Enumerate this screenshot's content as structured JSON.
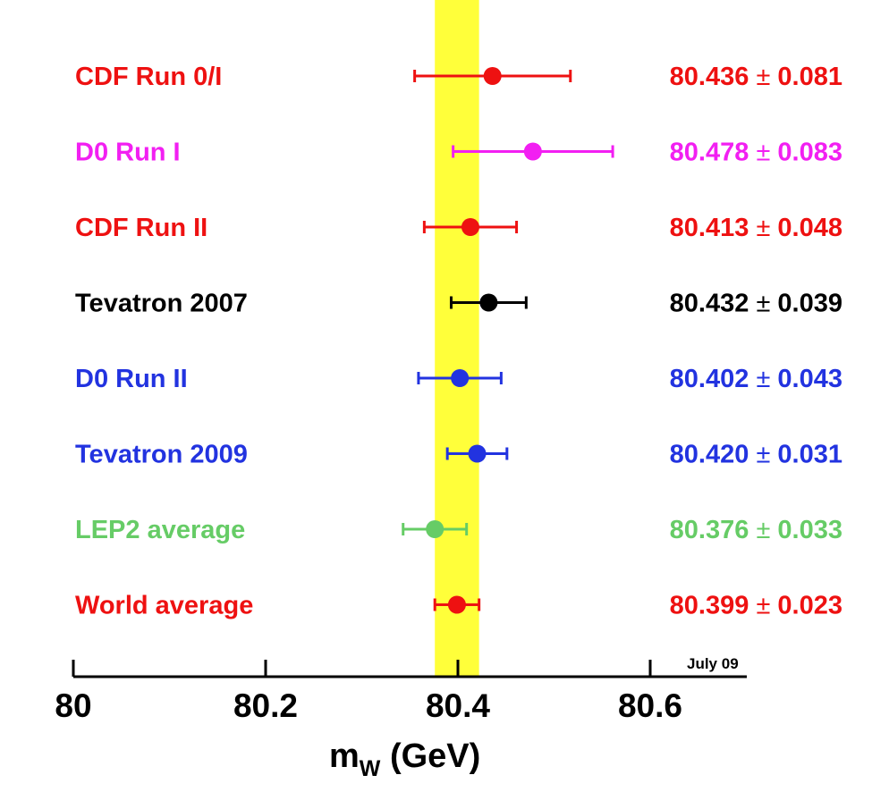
{
  "chart_data": {
    "type": "scatter",
    "title": "",
    "xlabel": {
      "main": "m",
      "sub": "W",
      "unit": " (GeV)"
    },
    "ylabel": "",
    "xlim": [
      80.0,
      80.7
    ],
    "xticks": [
      80,
      80.2,
      80.4,
      80.6
    ],
    "xtick_labels": [
      "80",
      "80.2",
      "80.4",
      "80.6"
    ],
    "band": {
      "center": 80.399,
      "error": 0.023,
      "color": "#ffff3a"
    },
    "annotation": "July 09",
    "points": [
      {
        "label": "CDF Run 0/I",
        "value": 80.436,
        "error": 0.081,
        "value_text": "80.436",
        "error_text": "0.081",
        "color": "#ee1111"
      },
      {
        "label": "D0 Run I",
        "value": 80.478,
        "error": 0.083,
        "value_text": "80.478",
        "error_text": "0.083",
        "color": "#f21ff2"
      },
      {
        "label": "CDF Run  II",
        "value": 80.413,
        "error": 0.048,
        "value_text": "80.413",
        "error_text": "0.048",
        "color": "#ee1111"
      },
      {
        "label": "Tevatron 2007",
        "value": 80.432,
        "error": 0.039,
        "value_text": "80.432",
        "error_text": "0.039",
        "color": "#000000"
      },
      {
        "label": "D0 Run II",
        "value": 80.402,
        "error": 0.043,
        "value_text": "80.402",
        "error_text": "0.043",
        "color": "#2233e0"
      },
      {
        "label": "Tevatron 2009",
        "value": 80.42,
        "error": 0.031,
        "value_text": "80.420",
        "error_text": "0.031",
        "color": "#2233e0"
      },
      {
        "label": "LEP2 average",
        "value": 80.376,
        "error": 0.033,
        "value_text": "80.376",
        "error_text": "0.033",
        "color": "#66cc66"
      },
      {
        "label": "World average",
        "value": 80.399,
        "error": 0.023,
        "value_text": "80.399",
        "error_text": "0.023",
        "color": "#ee1111"
      }
    ],
    "pm_symbol": "±",
    "grid": false,
    "legend": "none"
  }
}
